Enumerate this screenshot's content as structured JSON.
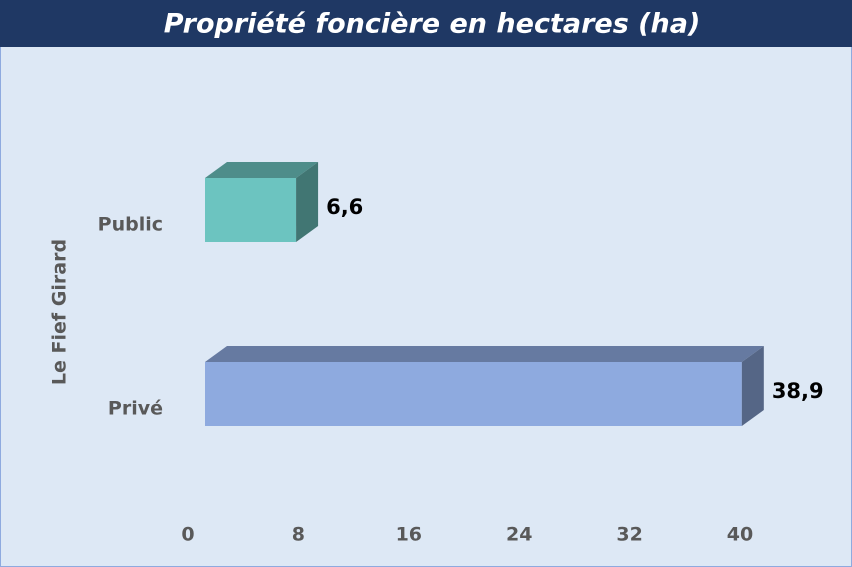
{
  "chart_data": {
    "type": "bar",
    "orientation": "horizontal",
    "title": "Propriété foncière en hectares (ha)",
    "group_label": "Le Fief Girard",
    "categories": [
      "Public",
      "Privé"
    ],
    "values": [
      6.6,
      38.9
    ],
    "value_labels": [
      "6,6",
      "38,9"
    ],
    "colors": [
      "#6cc4c0",
      "#8eaadf"
    ],
    "xlim": [
      0,
      40
    ],
    "xticks": [
      0,
      8,
      16,
      24,
      32,
      40
    ]
  }
}
